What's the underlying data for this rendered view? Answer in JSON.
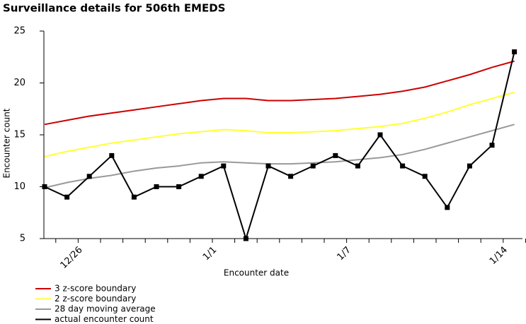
{
  "chart_data": {
    "type": "line",
    "title": "Surveillance details for 506th EMEDS",
    "xlabel": "Encounter date",
    "ylabel": "Encounter count",
    "categories": [
      null,
      "12/26",
      null,
      null,
      null,
      null,
      null,
      "1/1",
      null,
      null,
      null,
      null,
      null,
      "1/7",
      null,
      null,
      null,
      null,
      null,
      null,
      "1/14",
      null
    ],
    "ylim": [
      5,
      25
    ],
    "yticks": [
      5,
      10,
      15,
      20,
      25
    ],
    "series": [
      {
        "name": "3 z-score boundary",
        "color": "#cc0000",
        "values": [
          16.0,
          16.4,
          16.8,
          17.1,
          17.4,
          17.7,
          18.0,
          18.3,
          18.5,
          18.5,
          18.3,
          18.3,
          18.4,
          18.5,
          18.7,
          18.9,
          19.2,
          19.6,
          20.2,
          20.8,
          21.5,
          22.1
        ]
      },
      {
        "name": "2 z-score boundary",
        "color": "#ffff33",
        "values": [
          12.9,
          13.4,
          13.8,
          14.2,
          14.5,
          14.8,
          15.1,
          15.3,
          15.5,
          15.4,
          15.2,
          15.2,
          15.3,
          15.4,
          15.6,
          15.8,
          16.1,
          16.6,
          17.2,
          17.9,
          18.5,
          19.1
        ]
      },
      {
        "name": "28 day moving average",
        "color": "#999999",
        "values": [
          9.9,
          10.4,
          10.8,
          11.1,
          11.5,
          11.8,
          12.0,
          12.3,
          12.4,
          12.3,
          12.2,
          12.2,
          12.3,
          12.4,
          12.6,
          12.8,
          13.1,
          13.6,
          14.2,
          14.8,
          15.4,
          16.0
        ]
      },
      {
        "name": "actual encounter count",
        "color": "#000000",
        "marker": "square",
        "values": [
          10,
          9,
          11,
          13,
          9,
          10,
          10,
          11,
          12,
          5,
          12,
          11,
          12,
          13,
          12,
          15,
          12,
          11,
          8,
          12,
          14,
          23
        ]
      }
    ]
  }
}
